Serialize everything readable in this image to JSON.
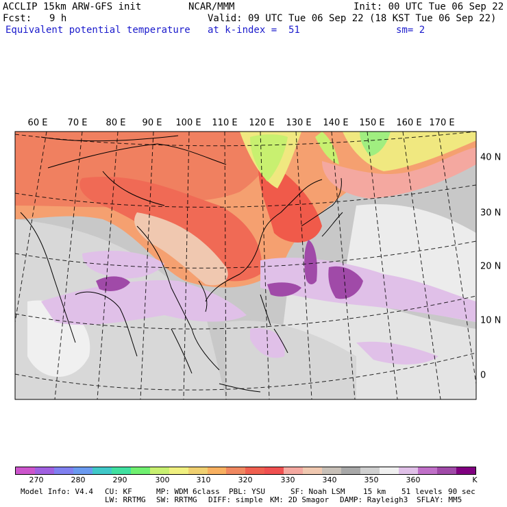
{
  "header": {
    "model": "ACCLIP 15km ARW-GFS init",
    "org": "NCAR/MMM",
    "init": "Init: 00 UTC Tue 06 Sep 22",
    "fcst_label": "Fcst:",
    "fcst_value": "9 h",
    "valid": "Valid: 09 UTC Tue 06 Sep 22 (18 KST Tue 06 Sep 22)",
    "field": "Equivalent potential temperature",
    "level": "at k-index =  51",
    "smooth": "sm= 2"
  },
  "map": {
    "lon_labels": [
      "60 E",
      "70 E",
      "80 E",
      "90 E",
      "100 E",
      "110 E",
      "120 E",
      "130 E",
      "140 E",
      "150 E",
      "160 E",
      "170 E"
    ],
    "lat_labels": [
      "40 N",
      "30 N",
      "20 N",
      "10 N",
      "0"
    ]
  },
  "colorbar": {
    "colors": [
      "#cc55cc",
      "#a060e0",
      "#8080f0",
      "#6a9af0",
      "#40c8c8",
      "#40e0a0",
      "#70f070",
      "#c8f070",
      "#f0f080",
      "#f0d070",
      "#f8b060",
      "#f08860",
      "#f06050",
      "#f05050",
      "#f4a8a0",
      "#f0c8b0",
      "#c8c0b8",
      "#a8a8a8",
      "#d0d0d0",
      "#f0f0f0",
      "#e0c0e8",
      "#c070c8",
      "#a04aa8",
      "#800080"
    ],
    "tick_labels": [
      "270",
      "280",
      "290",
      "300",
      "310",
      "320",
      "330",
      "340",
      "350",
      "360"
    ],
    "unit": "K"
  },
  "footer": {
    "line1": [
      "Model Info: V4.4",
      "CU: KF",
      "MP: WDM 6class",
      "PBL: YSU",
      "SF: Noah LSM",
      "15 km",
      "51 levels",
      "90 sec"
    ],
    "line2": [
      "LW: RRTMG",
      "SW: RRTMG",
      "DIFF: simple",
      "KM: 2D Smagor",
      "DAMP: Rayleigh3",
      "SFLAY: MM5"
    ]
  }
}
